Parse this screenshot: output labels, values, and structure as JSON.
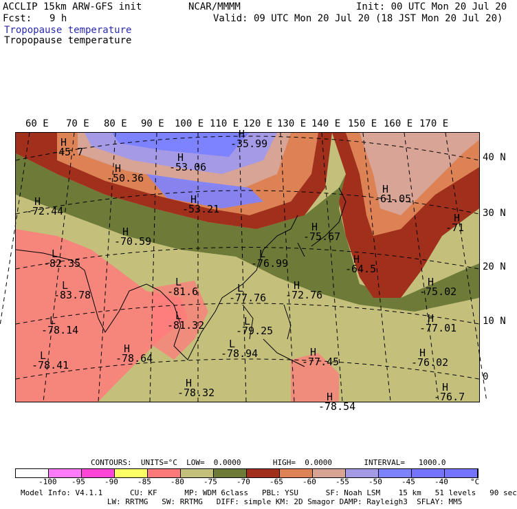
{
  "header": {
    "model": "ACCLIP 15km ARW-GFS init",
    "org": "NCAR/MMMM",
    "init": "Init: 00 UTC Mon 20 Jul 20",
    "fcst_label": "Fcst:",
    "fcst_value": "9 h",
    "valid": "Valid: 09 UTC Mon 20 Jul 20 (18 JST Mon 20 Jul 20)",
    "field1": "Tropopause temperature",
    "field2": "Tropopause temperature"
  },
  "longitudes": [
    "60 E",
    "70 E",
    "80 E",
    "90 E",
    "100 E",
    "110 E",
    "120 E",
    "130 E",
    "140 E",
    "150 E",
    "160 E",
    "170 E"
  ],
  "latitudes": [
    "40 N",
    "30 N",
    "20 N",
    "10 N",
    "0"
  ],
  "highs": [
    {
      "mark": "H",
      "value": "-45.7"
    },
    {
      "mark": "H",
      "value": "-35.99"
    },
    {
      "mark": "H",
      "value": "-53.06"
    },
    {
      "mark": "H",
      "value": "-50.36"
    },
    {
      "mark": "H",
      "value": "-72.44"
    },
    {
      "mark": "H",
      "value": "-53.21"
    },
    {
      "mark": "H",
      "value": "-61.05"
    },
    {
      "mark": "H",
      "value": "-71"
    },
    {
      "mark": "H",
      "value": "-70.59"
    },
    {
      "mark": "H",
      "value": "-75.67"
    },
    {
      "mark": "H",
      "value": "-64.5"
    },
    {
      "mark": "H",
      "value": "-72.76"
    },
    {
      "mark": "H",
      "value": "-75.02"
    },
    {
      "mark": "H",
      "value": "-77.01"
    },
    {
      "mark": "H",
      "value": "-78.64"
    },
    {
      "mark": "H",
      "value": "-77.45"
    },
    {
      "mark": "H",
      "value": "-76.02"
    },
    {
      "mark": "H",
      "value": "-78.32"
    },
    {
      "mark": "H",
      "value": "-76.7"
    },
    {
      "mark": "H",
      "value": "-78.54"
    }
  ],
  "lows": [
    {
      "mark": "L",
      "value": "-82.35"
    },
    {
      "mark": "L",
      "value": "-83.78"
    },
    {
      "mark": "L",
      "value": "-81.6"
    },
    {
      "mark": "L",
      "value": "-76.99"
    },
    {
      "mark": "L",
      "value": "-77.76"
    },
    {
      "mark": "L",
      "value": "-78.14"
    },
    {
      "mark": "L",
      "value": "-81.32"
    },
    {
      "mark": "L",
      "value": "-79.25"
    },
    {
      "mark": "L",
      "value": "-78.41"
    },
    {
      "mark": "L",
      "value": "-78.94"
    }
  ],
  "contours_line": "CONTOURS:  UNITS=°C  LOW=  0.0000       HIGH=  0.0000       INTERVAL=   1000.0",
  "colorbar": {
    "colors": [
      "#ffffff",
      "#ff7cff",
      "#ff44d8",
      "#ffff66",
      "#ff7b7b",
      "#c4c07c",
      "#6e7a38",
      "#a0301c",
      "#dd8255",
      "#d8a496",
      "#a59ae6",
      "#7d82ff",
      "#7474ff",
      "#7474ff"
    ],
    "labels": [
      "-100",
      "-95",
      "-90",
      "-85",
      "-80",
      "-75",
      "-70",
      "-65",
      "-60",
      "-55",
      "-50",
      "-45",
      "-40",
      "°C"
    ]
  },
  "footer": {
    "line1": "Model Info: V4.1.1      CU: KF      MP: WDM 6class   PBL: YSU      SF: Noah LSM    15 km   51 levels   90 sec",
    "line2": "                   LW: RRTMG   SW: RRTMG   DIFF: simple KM: 2D Smagor DAMP: Rayleigh3  SFLAY: MM5"
  },
  "colors": {
    "pink": "#ff7b7b",
    "tan": "#c4c07c",
    "olive": "#6e7a38",
    "darkred": "#a0301c",
    "orange": "#dd8255",
    "mauve": "#d8a496",
    "lavender": "#a59ae6",
    "blue": "#7d82ff"
  }
}
